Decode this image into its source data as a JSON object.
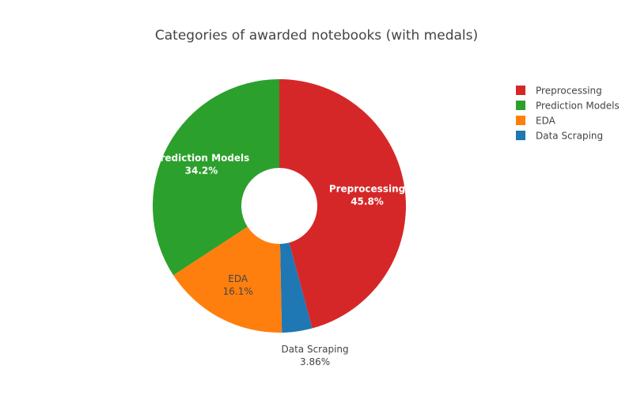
{
  "chart_data": {
    "type": "pie",
    "title": "Categories of awarded notebooks (with medals)",
    "hole": 0.3,
    "direction": "clockwise",
    "rotation_start_deg": 0,
    "legend_placement": "top-right",
    "slices": [
      {
        "label": "Preprocessing",
        "value": 45.8,
        "percent_text": "45.8%",
        "color": "#d62728",
        "text_color": "#ffffff",
        "label_position": "inside"
      },
      {
        "label": "Data Scraping",
        "value": 3.86,
        "percent_text": "3.86%",
        "color": "#1f77b4",
        "text_color": "#444444",
        "label_position": "outside"
      },
      {
        "label": "EDA",
        "value": 16.1,
        "percent_text": "16.1%",
        "color": "#ff7f0e",
        "text_color": "#444444",
        "label_position": "inside"
      },
      {
        "label": "Prediction Models",
        "value": 34.2,
        "percent_text": "34.2%",
        "color": "#2ca02c",
        "text_color": "#ffffff",
        "label_position": "inside"
      }
    ],
    "legend_order": [
      "Preprocessing",
      "Prediction Models",
      "EDA",
      "Data Scraping"
    ]
  }
}
